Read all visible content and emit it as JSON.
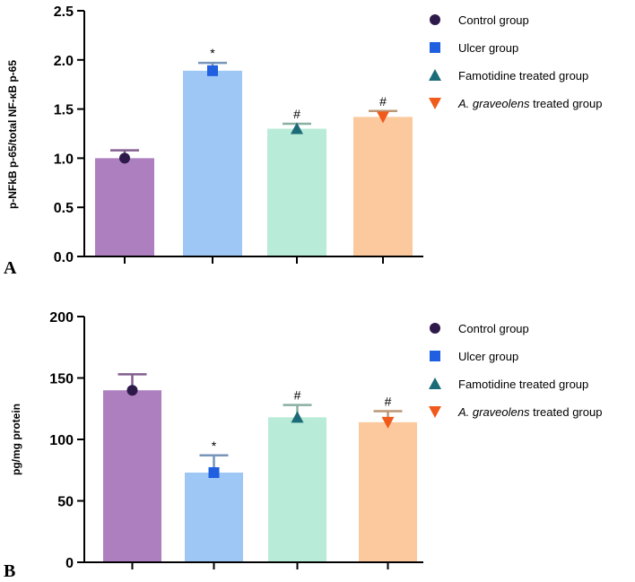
{
  "chart_data": [
    {
      "type": "bar",
      "panel_label": "A",
      "ylabel": "p-NFkB p-65/total NF-κB p-65",
      "ylim": [
        0,
        2.5
      ],
      "yticks": [
        0.0,
        0.5,
        1.0,
        1.5,
        2.0,
        2.5
      ],
      "ytick_labels": [
        "0.0",
        "0.5",
        "1.0",
        "1.5",
        "2.0",
        "2.5"
      ],
      "categories": [
        "Control group",
        "Ulcer group",
        "Famotidine treated group",
        "A. graveolens treated group"
      ],
      "values": [
        1.0,
        1.89,
        1.3,
        1.42
      ],
      "errors": [
        0.08,
        0.08,
        0.05,
        0.06
      ],
      "significance": [
        "",
        "*",
        "#",
        "#"
      ]
    },
    {
      "type": "bar",
      "panel_label": "B",
      "ylabel": "pg/mg protein",
      "ylim": [
        0,
        200
      ],
      "yticks": [
        0,
        50,
        100,
        150,
        200
      ],
      "ytick_labels": [
        "0",
        "50",
        "100",
        "150",
        "200"
      ],
      "categories": [
        "Control group",
        "Ulcer group",
        "Famotidine treated group",
        "A. graveolens treated group"
      ],
      "values": [
        140,
        73,
        118,
        114
      ],
      "errors": [
        13,
        14,
        10,
        9
      ],
      "significance": [
        "",
        "*",
        "#",
        "#"
      ]
    }
  ],
  "legend": {
    "entries": [
      {
        "italic": "",
        "text": "Control group",
        "marker": "circle",
        "color": "#2e1a4a"
      },
      {
        "italic": "",
        "text": "Ulcer group",
        "marker": "square",
        "color": "#1f5fe0"
      },
      {
        "italic": "",
        "text": "Famotidine treated group",
        "marker": "triangle-up",
        "color": "#1b6b78"
      },
      {
        "italic": "A. graveolens",
        "text": " treated group",
        "marker": "triangle-down",
        "color": "#f05a1a"
      }
    ]
  },
  "bar_colors": [
    "#ad7fbf",
    "#9ec7f5",
    "#b8ebd8",
    "#fbc99d"
  ],
  "point_colors": [
    "#2e1a4a",
    "#1f5fe0",
    "#1b6b78",
    "#f05a1a"
  ]
}
